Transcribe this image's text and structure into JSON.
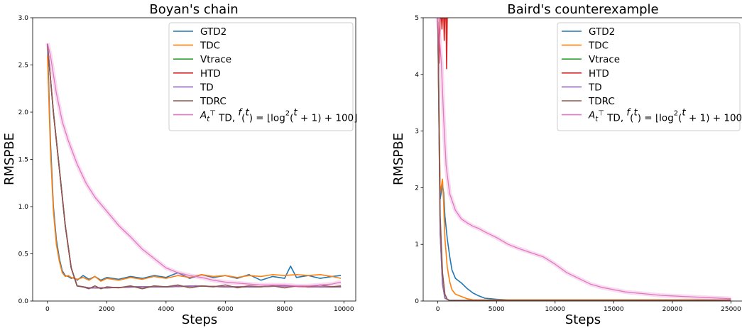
{
  "chart_data": [
    {
      "type": "line",
      "title": "Boyan's chain",
      "xlabel": "Steps",
      "ylabel": "RMSPBE",
      "xlim": [
        -500,
        10400
      ],
      "ylim": [
        0,
        3.0
      ],
      "xticks": [
        "0",
        "2000",
        "4000",
        "6000",
        "8000",
        "10000"
      ],
      "yticks": [
        "0.0",
        "0.5",
        "1.0",
        "1.5",
        "2.0",
        "2.5",
        "3.0"
      ],
      "legend_position": "top-right",
      "legend": [
        "GTD2",
        "TDC",
        "Vtrace",
        "HTD",
        "TD",
        "TDRC",
        "A_t^T TD, f(t) = ⌊log²(t+1) + 100⌋"
      ],
      "series": [
        {
          "name": "GTD2",
          "color": "#1f77b4",
          "x": [
            0,
            100,
            200,
            300,
            400,
            500,
            600,
            700,
            800,
            900,
            1000,
            1200,
            1400,
            1600,
            1800,
            2000,
            2400,
            2800,
            3200,
            3600,
            4000,
            4400,
            4800,
            5200,
            5600,
            6000,
            6400,
            6800,
            7200,
            7600,
            8000,
            8200,
            8400,
            8800,
            9200,
            9600,
            9900
          ],
          "y": [
            2.72,
            1.7,
            1.0,
            0.65,
            0.45,
            0.32,
            0.27,
            0.26,
            0.24,
            0.25,
            0.22,
            0.27,
            0.23,
            0.26,
            0.22,
            0.25,
            0.23,
            0.26,
            0.24,
            0.27,
            0.25,
            0.3,
            0.24,
            0.28,
            0.25,
            0.27,
            0.24,
            0.28,
            0.22,
            0.26,
            0.24,
            0.37,
            0.25,
            0.27,
            0.24,
            0.26,
            0.27
          ]
        },
        {
          "name": "TDC",
          "color": "#ff7f0e",
          "x": [
            0,
            100,
            200,
            300,
            400,
            500,
            600,
            700,
            800,
            900,
            1000,
            1200,
            1400,
            1600,
            1800,
            2000,
            2400,
            2800,
            3200,
            3600,
            4000,
            4400,
            4800,
            5200,
            5600,
            6000,
            6400,
            6800,
            7200,
            7600,
            8000,
            8400,
            8800,
            9200,
            9600,
            9900
          ],
          "y": [
            2.6,
            1.6,
            0.95,
            0.6,
            0.42,
            0.3,
            0.26,
            0.27,
            0.25,
            0.24,
            0.23,
            0.25,
            0.22,
            0.26,
            0.21,
            0.24,
            0.22,
            0.25,
            0.23,
            0.26,
            0.24,
            0.27,
            0.25,
            0.28,
            0.26,
            0.27,
            0.25,
            0.27,
            0.26,
            0.28,
            0.27,
            0.28,
            0.27,
            0.28,
            0.26,
            0.24
          ]
        },
        {
          "name": "Vtrace",
          "color": "#2ca02c",
          "x": [
            0,
            200,
            400,
            600,
            800,
            1000,
            1400,
            2000,
            3000,
            4000,
            5000,
            6000,
            7000,
            8000,
            9000,
            9900
          ],
          "y": [
            2.72,
            2.0,
            1.4,
            0.8,
            0.35,
            0.16,
            0.14,
            0.14,
            0.15,
            0.15,
            0.16,
            0.15,
            0.15,
            0.16,
            0.15,
            0.15
          ]
        },
        {
          "name": "HTD",
          "color": "#d62728",
          "x": [
            0,
            200,
            400,
            600,
            800,
            1000,
            1400,
            2000,
            3000,
            4000,
            5000,
            6000,
            7000,
            8000,
            9000,
            9900
          ],
          "y": [
            2.72,
            2.0,
            1.4,
            0.8,
            0.35,
            0.16,
            0.14,
            0.14,
            0.15,
            0.15,
            0.16,
            0.15,
            0.15,
            0.16,
            0.15,
            0.15
          ]
        },
        {
          "name": "TD",
          "color": "#9467bd",
          "x": [
            0,
            200,
            400,
            600,
            800,
            1000,
            1400,
            2000,
            3000,
            4000,
            5000,
            6000,
            7000,
            8000,
            9000,
            9900
          ],
          "y": [
            2.72,
            2.0,
            1.4,
            0.8,
            0.35,
            0.16,
            0.14,
            0.14,
            0.15,
            0.15,
            0.16,
            0.15,
            0.15,
            0.16,
            0.15,
            0.15
          ]
        },
        {
          "name": "TDRC",
          "color": "#8c564b",
          "x": [
            0,
            200,
            400,
            600,
            800,
            1000,
            1200,
            1400,
            1600,
            1800,
            2000,
            2400,
            2800,
            3200,
            3600,
            4000,
            4400,
            4800,
            5200,
            5600,
            6000,
            6400,
            6800,
            7200,
            7600,
            8000,
            8400,
            8800,
            9200,
            9600,
            9900
          ],
          "y": [
            2.72,
            2.0,
            1.4,
            0.8,
            0.35,
            0.16,
            0.15,
            0.13,
            0.16,
            0.13,
            0.15,
            0.14,
            0.16,
            0.13,
            0.16,
            0.15,
            0.17,
            0.14,
            0.16,
            0.15,
            0.17,
            0.14,
            0.16,
            0.15,
            0.16,
            0.14,
            0.16,
            0.15,
            0.17,
            0.15,
            0.16
          ]
        },
        {
          "name": "A_t^T TD, f(t) = ⌊log²(t+1) + 100⌋",
          "color": "#e377c2",
          "x": [
            0,
            100,
            300,
            500,
            700,
            1000,
            1300,
            1600,
            2000,
            2400,
            2800,
            3200,
            3600,
            4000,
            4400,
            4800,
            5200,
            5600,
            6000,
            6400,
            6800,
            7200,
            7600,
            8000,
            8400,
            8800,
            9200,
            9600,
            9900
          ],
          "y": [
            2.73,
            2.6,
            2.2,
            1.9,
            1.7,
            1.45,
            1.25,
            1.1,
            0.95,
            0.8,
            0.68,
            0.55,
            0.45,
            0.35,
            0.3,
            0.27,
            0.25,
            0.22,
            0.2,
            0.19,
            0.18,
            0.17,
            0.17,
            0.17,
            0.16,
            0.16,
            0.17,
            0.18,
            0.2
          ]
        }
      ]
    },
    {
      "type": "line",
      "title": "Baird's counterexample",
      "xlabel": "Steps",
      "ylabel": "RMSPBE",
      "xlim": [
        -1250,
        26000
      ],
      "ylim": [
        0,
        5
      ],
      "xticks": [
        "0",
        "5000",
        "10000",
        "15000",
        "20000",
        "25000"
      ],
      "yticks": [
        "0",
        "1",
        "2",
        "3",
        "4",
        "5"
      ],
      "legend_position": "top-right",
      "legend": [
        "GTD2",
        "TDC",
        "Vtrace",
        "HTD",
        "TD",
        "TDRC",
        "A_t^T TD, f(t) = ⌊log²(t+1) + 100⌋"
      ],
      "series": [
        {
          "name": "GTD2",
          "color": "#1f77b4",
          "x": [
            0,
            200,
            400,
            500,
            600,
            800,
            1000,
            1200,
            1500,
            2000,
            2500,
            3000,
            3500,
            4000,
            5000,
            6000,
            8000,
            10000,
            15000,
            20000,
            25000
          ],
          "y": [
            5,
            1.8,
            2.05,
            1.9,
            1.5,
            1.1,
            0.8,
            0.55,
            0.4,
            0.32,
            0.22,
            0.14,
            0.09,
            0.05,
            0.03,
            0.02,
            0.02,
            0.02,
            0.02,
            0.02,
            0.02
          ]
        },
        {
          "name": "TDC",
          "color": "#ff7f0e",
          "x": [
            0,
            200,
            400,
            500,
            600,
            800,
            1000,
            1200,
            1500,
            2000,
            2500,
            3000,
            4000,
            6000,
            10000,
            15000,
            20000,
            25000
          ],
          "y": [
            5,
            1.9,
            2.15,
            1.7,
            1.1,
            0.6,
            0.35,
            0.2,
            0.12,
            0.08,
            0.04,
            0.02,
            0.02,
            0.02,
            0.02,
            0.02,
            0.02,
            0.02
          ]
        },
        {
          "name": "Vtrace",
          "color": "#2ca02c",
          "x": [
            0,
            200,
            400,
            600,
            1000,
            2000,
            5000,
            10000,
            15000,
            20000,
            25000
          ],
          "y": [
            5,
            1.2,
            0.3,
            0.05,
            0.01,
            0.01,
            0.01,
            0.01,
            0.01,
            0.01,
            0.01
          ]
        },
        {
          "name": "HTD",
          "color": "#d62728",
          "x": [
            0,
            100,
            200,
            300,
            350,
            400,
            450,
            500,
            550,
            600,
            650,
            700,
            750,
            800,
            850,
            900
          ],
          "y": [
            5,
            4.2,
            5,
            5,
            4.8,
            5,
            5,
            5,
            4.6,
            5,
            5,
            5,
            4.1,
            5,
            5,
            5
          ]
        },
        {
          "name": "TD",
          "color": "#9467bd",
          "x": [
            0,
            200,
            400,
            600,
            1000,
            2000,
            5000,
            10000,
            15000,
            20000,
            25000
          ],
          "y": [
            5,
            1.2,
            0.3,
            0.05,
            0.01,
            0.01,
            0.01,
            0.01,
            0.01,
            0.01,
            0.01
          ]
        },
        {
          "name": "TDRC",
          "color": "#8c564b",
          "x": [
            0,
            200,
            400,
            600,
            800,
            1000,
            2000,
            5000,
            10000,
            15000,
            20000,
            25000
          ],
          "y": [
            5,
            1.5,
            0.5,
            0.12,
            0.03,
            0.01,
            0.01,
            0.01,
            0.01,
            0.01,
            0.01,
            0.01
          ]
        },
        {
          "name": "A_t^T TD, f(t) = ⌊log²(t+1) + 100⌋",
          "color": "#e377c2",
          "x": [
            0,
            300,
            500,
            700,
            1000,
            1500,
            2000,
            2500,
            3000,
            3500,
            4000,
            5000,
            6000,
            7000,
            8000,
            9000,
            10000,
            11000,
            12000,
            13000,
            14000,
            15000,
            16000,
            17000,
            18000,
            19000,
            20000,
            21000,
            22000,
            23000,
            24000,
            25000
          ],
          "y": [
            5,
            4.2,
            3.2,
            2.4,
            1.9,
            1.6,
            1.45,
            1.38,
            1.32,
            1.28,
            1.22,
            1.12,
            1.0,
            0.92,
            0.85,
            0.78,
            0.65,
            0.5,
            0.4,
            0.3,
            0.24,
            0.2,
            0.16,
            0.14,
            0.12,
            0.1,
            0.09,
            0.08,
            0.07,
            0.06,
            0.05,
            0.04
          ]
        }
      ]
    }
  ]
}
